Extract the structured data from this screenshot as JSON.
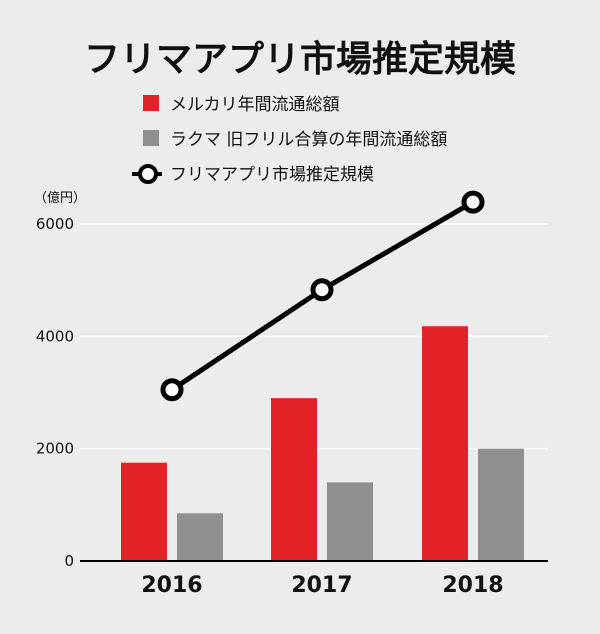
{
  "chart_data": {
    "type": "bar",
    "title": "フリマアプリ市場推定規模",
    "unit_label": "（億円）",
    "categories": [
      "2016",
      "2017",
      "2018"
    ],
    "series": [
      {
        "name": "メルカリ年間流通総額",
        "type": "bar",
        "color": "#e32228",
        "values": [
          1750,
          2900,
          4180
        ]
      },
      {
        "name": "ラクマ 旧フリル合算の年間流通総額",
        "type": "bar",
        "color": "#8f8f8f",
        "values": [
          850,
          1400,
          2000
        ]
      },
      {
        "name": "フリマアプリ市場推定規模",
        "type": "line",
        "color": "#000000",
        "values": [
          3050,
          4830,
          6390
        ]
      }
    ],
    "yticks": [
      0,
      2000,
      4000,
      6000
    ],
    "ylim": [
      0,
      6500
    ],
    "grid": true,
    "legend_position": "top"
  }
}
